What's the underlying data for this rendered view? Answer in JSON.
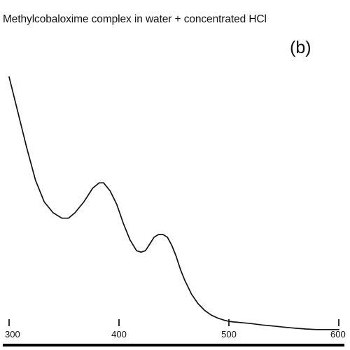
{
  "chart_data": {
    "type": "line",
    "title": "Methylcobaloxime complex in water + concentrated HCl",
    "panel_label": "(b)",
    "xlabel": "",
    "ylabel": "",
    "xlim": [
      300,
      600
    ],
    "ylim": [
      0,
      1
    ],
    "x_ticks": [
      300,
      400,
      500,
      600
    ],
    "grid": false,
    "legend": "none",
    "colors": {
      "line": "#111111",
      "axis": "#000000"
    },
    "series": [
      {
        "x": [
          300,
          308,
          316,
          324,
          332,
          340,
          348,
          354,
          360,
          368,
          376,
          382,
          386,
          392,
          398,
          404,
          410,
          416,
          420,
          424,
          428,
          432,
          436,
          440,
          444,
          448,
          452,
          456,
          460,
          466,
          472,
          478,
          484,
          490,
          496,
          500,
          504,
          510,
          520,
          530,
          540,
          550,
          560,
          570,
          580,
          590,
          600
        ],
        "y": [
          0.91,
          0.78,
          0.65,
          0.53,
          0.45,
          0.41,
          0.39,
          0.39,
          0.41,
          0.45,
          0.5,
          0.52,
          0.52,
          0.49,
          0.44,
          0.37,
          0.31,
          0.27,
          0.265,
          0.27,
          0.295,
          0.32,
          0.33,
          0.33,
          0.32,
          0.29,
          0.25,
          0.2,
          0.16,
          0.11,
          0.075,
          0.05,
          0.033,
          0.022,
          0.014,
          0.01,
          0.008,
          0.006,
          0.002,
          -0.003,
          -0.007,
          -0.011,
          -0.015,
          -0.018,
          -0.02,
          -0.02,
          -0.02
        ]
      }
    ]
  }
}
